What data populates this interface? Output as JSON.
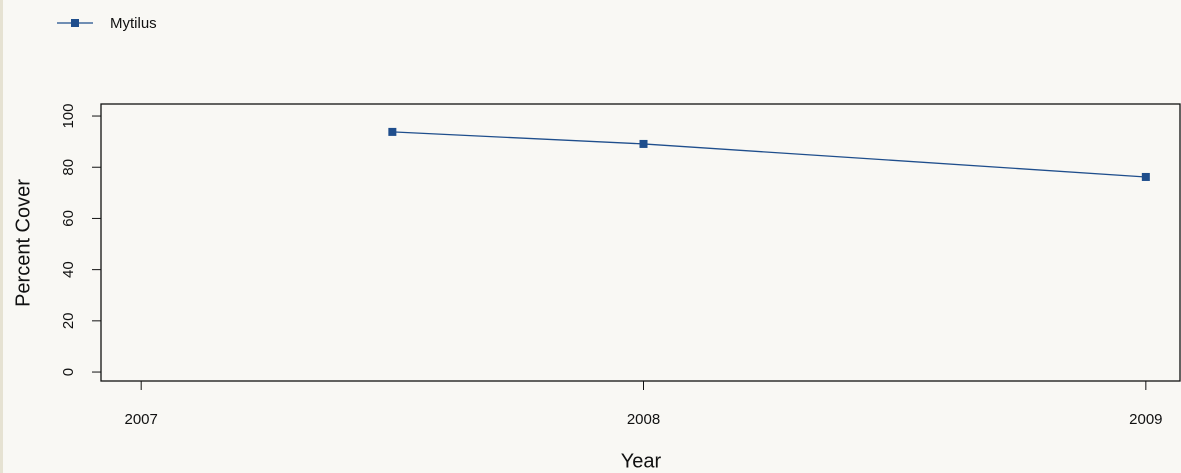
{
  "chart_data": {
    "type": "line",
    "xlabel": "Year",
    "ylabel": "Percent Cover",
    "x": [
      2007.5,
      2008,
      2009
    ],
    "series": [
      {
        "name": "Mytilus",
        "color": "#1f4e8c",
        "values": [
          93.8,
          89.1,
          76.2
        ]
      }
    ],
    "xlim": [
      2006.92,
      2009.07
    ],
    "xticks": [
      2007,
      2008,
      2009
    ],
    "ylim": [
      -3.5,
      104.7
    ],
    "yticks": [
      0,
      20,
      40,
      60,
      80,
      100
    ],
    "grid": false,
    "legend": "top-left",
    "markers": "square"
  }
}
